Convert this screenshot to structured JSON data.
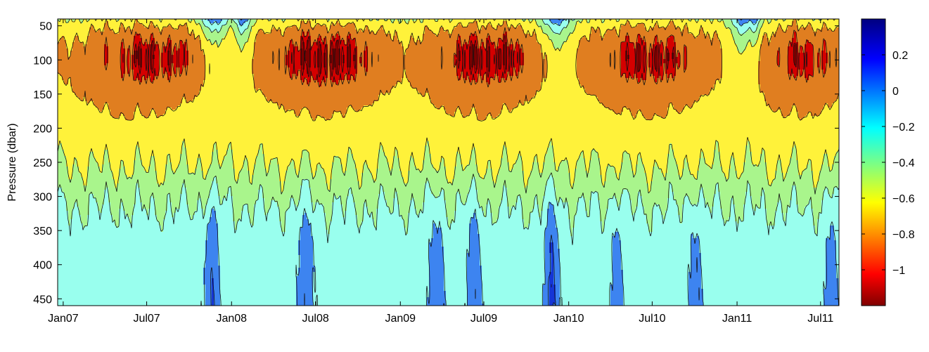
{
  "chart_data": {
    "type": "heatmap",
    "title": "",
    "xlabel": "",
    "ylabel": "Pressure (dbar)",
    "x_ticks": [
      "Jan07",
      "Jul07",
      "Jan08",
      "Jul08",
      "Jan09",
      "Jul09",
      "Jan10",
      "Jul10",
      "Jan11",
      "Jul11"
    ],
    "xlim": [
      "2006-12-20",
      "2011-08-10"
    ],
    "y_ticks": [
      50,
      100,
      150,
      200,
      250,
      300,
      350,
      400,
      450
    ],
    "ylim": [
      40,
      460
    ],
    "y_reversed": true,
    "colorbar": {
      "colormap": "jet",
      "range": [
        -1.2,
        0.4
      ],
      "ticks": [
        0.2,
        0,
        -0.2,
        -0.4,
        -0.6,
        -0.8,
        -1
      ],
      "tick_labels": [
        "0.2",
        "0",
        "−0.2",
        "−0.4",
        "−0.6",
        "−0.8",
        "−1"
      ]
    },
    "contour_levels": [
      -1.1,
      -1.0,
      -0.8,
      -0.6,
      -0.4,
      -0.2,
      0,
      0.2
    ],
    "level_colors": [
      "#7a0000",
      "#d40000",
      "#e07e20",
      "#fff23a",
      "#a9f58c",
      "#99ffee",
      "#3d84f0",
      "#1536d6",
      "#000a8f"
    ],
    "grid": false
  }
}
